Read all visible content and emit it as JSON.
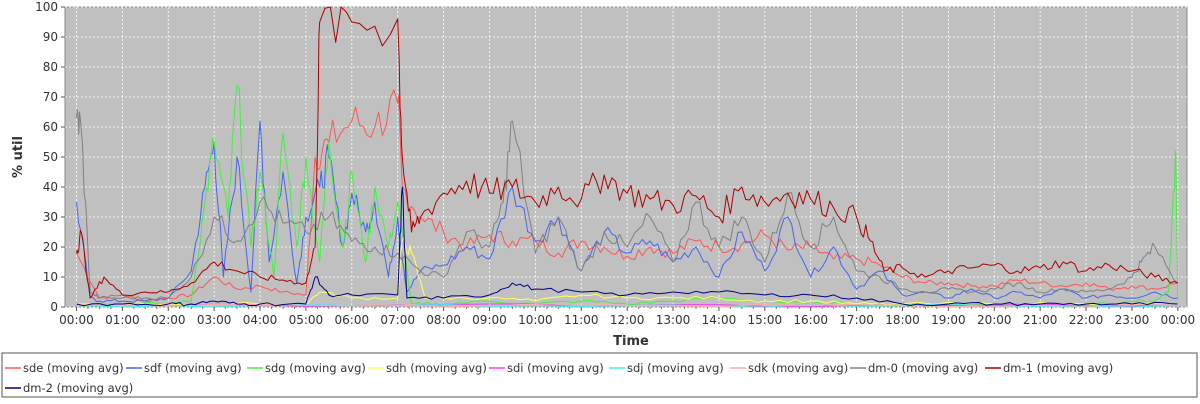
{
  "chart_data": {
    "type": "line",
    "title": "",
    "xlabel": "Time",
    "ylabel": "% util",
    "ylim": [
      0,
      100
    ],
    "xlim_hours": [
      -0.25,
      24.2
    ],
    "y_ticks": [
      0,
      10,
      20,
      30,
      40,
      50,
      60,
      70,
      80,
      90,
      100
    ],
    "x_ticks": [
      "00:00",
      "01:00",
      "02:00",
      "03:00",
      "04:00",
      "05:00",
      "06:00",
      "07:00",
      "08:00",
      "09:00",
      "10:00",
      "11:00",
      "12:00",
      "13:00",
      "14:00",
      "15:00",
      "16:00",
      "17:00",
      "18:00",
      "19:00",
      "20:00",
      "21:00",
      "22:00",
      "23:00",
      "00:00"
    ],
    "grid": true,
    "legend_position": "bottom",
    "plot_background": "#c0c0c0",
    "series": [
      {
        "name": "sde (moving avg)",
        "color": "#ff5555",
        "x": [
          0,
          0.5,
          1,
          1.5,
          2,
          2.5,
          3,
          3.5,
          4,
          4.5,
          5,
          5.2,
          5.5,
          6,
          6.5,
          7,
          7.1,
          7.5,
          8,
          8.5,
          9,
          9.5,
          10,
          10.5,
          11,
          11.5,
          12,
          12.5,
          13,
          13.5,
          14,
          14.5,
          15,
          15.5,
          16,
          16.5,
          17,
          17.5,
          18,
          18.5,
          19,
          19.5,
          20,
          20.5,
          21,
          21.5,
          22,
          22.5,
          23,
          23.5,
          24
        ],
        "y": [
          18,
          3,
          4,
          2,
          3,
          4,
          10,
          6,
          7,
          5,
          4,
          50,
          55,
          62,
          60,
          68,
          40,
          30,
          25,
          20,
          24,
          22,
          22,
          18,
          22,
          20,
          17,
          20,
          18,
          22,
          20,
          21,
          24,
          19,
          20,
          16,
          16,
          14,
          10,
          8,
          8,
          7,
          7,
          9,
          8,
          7,
          8,
          6,
          7,
          6,
          8
        ]
      },
      {
        "name": "sdf (moving avg)",
        "color": "#4466ee",
        "x": [
          0,
          0.3,
          0.5,
          1,
          1.5,
          2,
          2.5,
          2.8,
          3,
          3.2,
          3.5,
          3.8,
          4,
          4.2,
          4.5,
          4.8,
          5,
          5.3,
          5.5,
          5.8,
          6,
          6.3,
          6.5,
          6.8,
          7,
          7.2,
          7.5,
          8,
          8.5,
          9,
          9.5,
          10,
          10.5,
          11,
          11.5,
          12,
          12.5,
          13,
          13.5,
          14,
          14.5,
          15,
          15.5,
          16,
          16.5,
          17,
          17.5,
          18,
          18.5,
          19,
          19.5,
          20,
          20.5,
          21,
          21.5,
          22,
          22.5,
          23,
          23.5,
          24
        ],
        "y": [
          35,
          3,
          2,
          2,
          2,
          3,
          12,
          40,
          55,
          10,
          50,
          5,
          62,
          15,
          45,
          8,
          30,
          40,
          50,
          20,
          38,
          25,
          35,
          10,
          30,
          5,
          12,
          14,
          20,
          16,
          40,
          22,
          30,
          12,
          25,
          18,
          22,
          15,
          20,
          10,
          25,
          12,
          30,
          10,
          20,
          6,
          12,
          4,
          5,
          3,
          6,
          3,
          5,
          3,
          6,
          3,
          4,
          3,
          5,
          3
        ]
      },
      {
        "name": "sdg (moving avg)",
        "color": "#44ee44",
        "x": [
          0,
          1,
          2,
          2.5,
          2.8,
          3,
          3.3,
          3.5,
          3.8,
          4,
          4.3,
          4.5,
          4.8,
          5,
          5.3,
          5.5,
          5.8,
          6,
          6.3,
          6.5,
          6.8,
          7,
          7.3,
          7.5,
          8,
          9,
          10,
          11,
          12,
          13,
          14,
          15,
          16,
          17,
          18,
          19,
          20,
          21,
          22,
          23,
          23.5,
          23.8,
          23.95,
          24
        ],
        "y": [
          1,
          1,
          1,
          2,
          35,
          55,
          30,
          74,
          20,
          45,
          10,
          58,
          20,
          50,
          15,
          55,
          20,
          45,
          15,
          40,
          20,
          35,
          1,
          1,
          1,
          2,
          1,
          2,
          1,
          2,
          3,
          2,
          1,
          1,
          1,
          1,
          1,
          1,
          1,
          2,
          2,
          5,
          52,
          2
        ]
      },
      {
        "name": "sdh (moving avg)",
        "color": "#ffff66",
        "x": [
          0,
          2,
          4,
          5,
          5.3,
          6,
          7,
          7.1,
          7.3,
          7.6,
          8,
          9,
          10,
          11,
          12,
          13,
          14,
          15,
          16,
          17,
          18,
          20,
          22,
          24
        ],
        "y": [
          1,
          1,
          1,
          1,
          5,
          3,
          3,
          22,
          18,
          3,
          3,
          3,
          2,
          4,
          3,
          3,
          3,
          2,
          2,
          1,
          1,
          1,
          1,
          1
        ]
      },
      {
        "name": "sdi (moving avg)",
        "color": "#ee44ee",
        "x": [
          0,
          6,
          12,
          18,
          24
        ],
        "y": [
          0.5,
          0.5,
          0.5,
          0.5,
          0.5
        ]
      },
      {
        "name": "sdj (moving avg)",
        "color": "#44eeee",
        "x": [
          0,
          6,
          12,
          18,
          24
        ],
        "y": [
          0.5,
          0.5,
          0.5,
          0.5,
          0.5
        ]
      },
      {
        "name": "sdk (moving avg)",
        "color": "#ffaaaa",
        "x": [
          0,
          6,
          12,
          18,
          24
        ],
        "y": [
          0.5,
          0.5,
          0.5,
          0.5,
          0.5
        ]
      },
      {
        "name": "dm-0 (moving avg)",
        "color": "#808080",
        "x": [
          0,
          0.1,
          0.3,
          0.5,
          1,
          1.5,
          2,
          2.5,
          3,
          3.5,
          4,
          4.5,
          5,
          5.5,
          6,
          6.5,
          7,
          7.5,
          8,
          8.5,
          9,
          9.3,
          9.5,
          10,
          10.5,
          11,
          11.5,
          12,
          12.5,
          13,
          13.5,
          14,
          14.5,
          15,
          15.5,
          16,
          16.5,
          17,
          17.5,
          18,
          18.5,
          19,
          19.5,
          20,
          20.5,
          21,
          21.5,
          22,
          22.5,
          23,
          23.2,
          23.5,
          24
        ],
        "y": [
          63,
          60,
          5,
          3,
          3,
          3,
          3,
          10,
          30,
          22,
          35,
          28,
          25,
          30,
          22,
          20,
          18,
          12,
          10,
          25,
          20,
          35,
          62,
          18,
          30,
          12,
          25,
          20,
          30,
          15,
          35,
          20,
          30,
          15,
          38,
          20,
          30,
          12,
          10,
          6,
          5,
          6,
          5,
          6,
          8,
          5,
          6,
          5,
          6,
          10,
          15,
          20,
          8
        ]
      },
      {
        "name": "dm-1 (moving avg)",
        "color": "#aa0000",
        "x": [
          0,
          0.1,
          0.3,
          0.6,
          1,
          1.5,
          2,
          2.5,
          3,
          3.5,
          4,
          4.5,
          5,
          5.2,
          5.3,
          6,
          7,
          7.1,
          7.3,
          7.5,
          8,
          8.5,
          9,
          9.5,
          10,
          10.5,
          11,
          11.5,
          12,
          12.5,
          13,
          13.5,
          14,
          14.5,
          15,
          15.5,
          16,
          16.5,
          17,
          17.3,
          17.6,
          18,
          18.5,
          19,
          19.5,
          20,
          20.5,
          21,
          21.5,
          22,
          22.5,
          23,
          23.5,
          24
        ],
        "y": [
          18,
          25,
          3,
          10,
          4,
          5,
          5,
          8,
          15,
          12,
          10,
          9,
          8,
          20,
          95,
          95,
          96,
          50,
          25,
          30,
          38,
          42,
          38,
          40,
          35,
          40,
          36,
          44,
          38,
          36,
          34,
          37,
          30,
          40,
          35,
          38,
          36,
          33,
          30,
          22,
          12,
          13,
          10,
          12,
          13,
          14,
          12,
          13,
          15,
          12,
          14,
          12,
          10,
          8
        ]
      },
      {
        "name": "dm-2 (moving avg)",
        "color": "#000088",
        "x": [
          0,
          1,
          2,
          2.5,
          3,
          3.5,
          4,
          5,
          5.2,
          5.5,
          6,
          7,
          7.1,
          7.2,
          8,
          9,
          9.5,
          10,
          11,
          12,
          13,
          14,
          15,
          16,
          17,
          18,
          19,
          20,
          21,
          22,
          23,
          24
        ],
        "y": [
          1,
          1,
          1,
          1,
          2,
          1,
          1,
          1,
          10,
          4,
          4,
          4,
          40,
          3,
          3,
          4,
          8,
          6,
          5,
          4,
          5,
          5,
          4,
          4,
          3,
          1,
          1,
          1,
          1,
          1,
          1,
          1
        ]
      }
    ]
  }
}
